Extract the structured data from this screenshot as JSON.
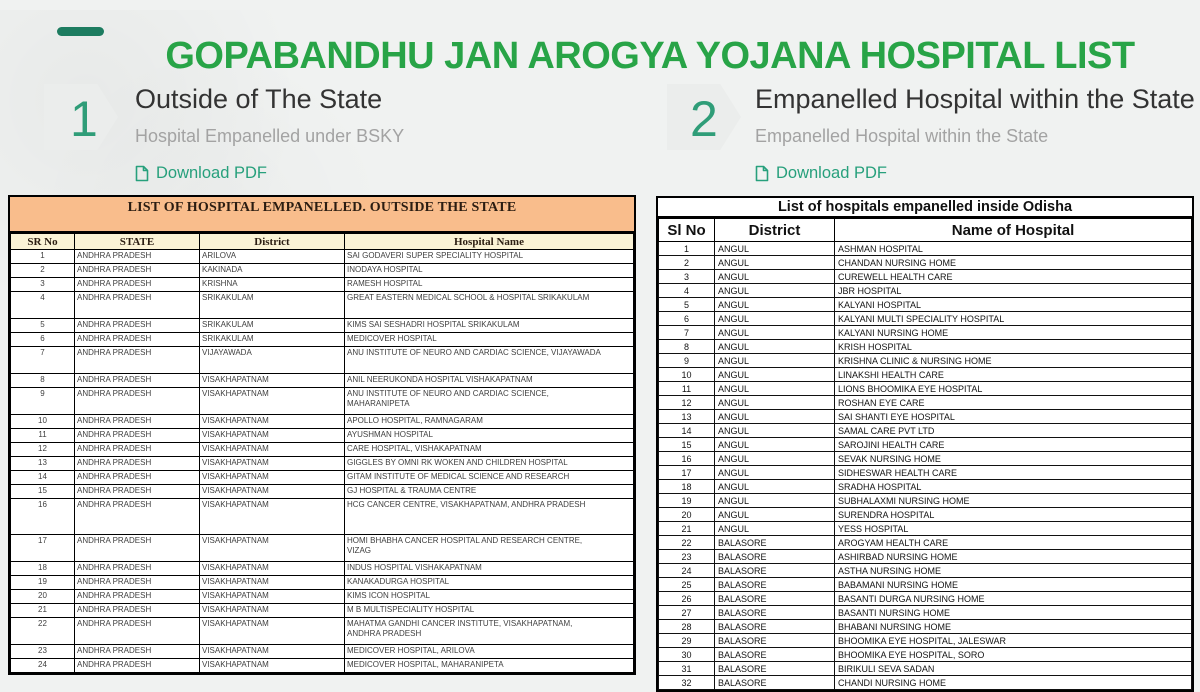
{
  "page": {
    "title": "GOPABANDHU JAN AROGYA YOJANA HOSPITAL LIST"
  },
  "colors": {
    "title_green": "#28a447",
    "accent_teal": "#2f9d78",
    "link_teal": "#27a07c",
    "banner_peach": "#f9bd8c",
    "header_cream": "#fbf3d6"
  },
  "sections": [
    {
      "number": "1",
      "title": "Outside of The State",
      "subtitle": "Hospital Empanelled under BSKY",
      "download_label": "Download PDF"
    },
    {
      "number": "2",
      "title": "Empanelled Hospital within the State",
      "subtitle": "Empanelled Hospital within the State",
      "download_label": "Download PDF"
    }
  ],
  "outside_table": {
    "title": "LIST OF HOSPITAL EMPANELLED. OUTSIDE THE STATE",
    "columns": [
      "SR No",
      "STATE",
      "District",
      "Hospital Name"
    ],
    "rows": [
      [
        "1",
        "ANDHRA PRADESH",
        "ARILOVA",
        "SAI GODAVERI SUPER SPECIALITY HOSPITAL"
      ],
      [
        "2",
        "ANDHRA PRADESH",
        "KAKINADA",
        "INODAYA HOSPITAL"
      ],
      [
        "3",
        "ANDHRA PRADESH",
        "KRISHNA",
        "RAMESH HOSPITAL"
      ],
      [
        "4",
        "ANDHRA PRADESH",
        "SRIKAKULAM",
        "GREAT EASTERN MEDICAL SCHOOL & HOSPITAL SRIKAKULAM"
      ],
      [
        "5",
        "ANDHRA PRADESH",
        "SRIKAKULAM",
        "KIMS SAI SESHADRI HOSPITAL SRIKAKULAM"
      ],
      [
        "6",
        "ANDHRA PRADESH",
        "SRIKAKULAM",
        "MEDICOVER HOSPITAL"
      ],
      [
        "7",
        "ANDHRA PRADESH",
        "VIJAYAWADA",
        "ANU INSTITUTE OF NEURO AND CARDIAC SCIENCE, VIJAYAWADA"
      ],
      [
        "8",
        "ANDHRA PRADESH",
        "VISAKHAPATNAM",
        "ANIL NEERUKONDA HOSPITAL VISHAKAPATNAM"
      ],
      [
        "9",
        "ANDHRA PRADESH",
        "VISAKHAPATNAM",
        "ANU INSTITUTE OF NEURO AND CARDIAC SCIENCE,\nMAHARANIPETA"
      ],
      [
        "10",
        "ANDHRA PRADESH",
        "VISAKHAPATNAM",
        "APOLLO HOSPITAL, RAMNAGARAM"
      ],
      [
        "11",
        "ANDHRA PRADESH",
        "VISAKHAPATNAM",
        "AYUSHMAN HOSPITAL"
      ],
      [
        "12",
        "ANDHRA PRADESH",
        "VISAKHAPATNAM",
        "CARE HOSPITAL, VISHAKAPATNAM"
      ],
      [
        "13",
        "ANDHRA PRADESH",
        "VISAKHAPATNAM",
        "GIGGLES BY OMNI RK WOKEN AND CHILDREN HOSPITAL"
      ],
      [
        "14",
        "ANDHRA PRADESH",
        "VISAKHAPATNAM",
        "GITAM INSTITUTE OF MEDICAL SCIENCE AND RESEARCH"
      ],
      [
        "15",
        "ANDHRA PRADESH",
        "VISAKHAPATNAM",
        "GJ HOSPITAL & TRAUMA CENTRE"
      ],
      [
        "16",
        "ANDHRA PRADESH",
        "VISAKHAPATNAM",
        "HCG CANCER CENTRE, VISAKHAPATNAM, ANDHRA PRADESH"
      ],
      [
        "17",
        "ANDHRA PRADESH",
        "VISAKHAPATNAM",
        "HOMI BHABHA CANCER HOSPITAL AND RESEARCH CENTRE,\nVIZAG"
      ],
      [
        "18",
        "ANDHRA PRADESH",
        "VISAKHAPATNAM",
        "INDUS HOSPITAL VISHAKAPATNAM"
      ],
      [
        "19",
        "ANDHRA PRADESH",
        "VISAKHAPATNAM",
        "KANAKADURGA HOSPITAL"
      ],
      [
        "20",
        "ANDHRA PRADESH",
        "VISAKHAPATNAM",
        "KIMS ICON HOSPITAL"
      ],
      [
        "21",
        "ANDHRA PRADESH",
        "VISAKHAPATNAM",
        "M B MULTISPECIALITY HOSPITAL"
      ],
      [
        "22",
        "ANDHRA PRADESH",
        "VISAKHAPATNAM",
        "MAHATMA GANDHI CANCER INSTITUTE, VISAKHAPATNAM,\nANDHRA PRADESH"
      ],
      [
        "23",
        "ANDHRA PRADESH",
        "VISAKHAPATNAM",
        "MEDICOVER HOSPITAL, ARILOVA"
      ],
      [
        "24",
        "ANDHRA PRADESH",
        "VISAKHAPATNAM",
        "MEDICOVER HOSPITAL, MAHARANIPETA"
      ]
    ]
  },
  "inside_table": {
    "title": "List of hospitals empanelled inside Odisha",
    "columns": [
      "Sl No",
      "District",
      "Name of Hospital"
    ],
    "rows": [
      [
        "1",
        "ANGUL",
        "ASHMAN HOSPITAL"
      ],
      [
        "2",
        "ANGUL",
        "CHANDAN NURSING HOME"
      ],
      [
        "3",
        "ANGUL",
        "CUREWELL HEALTH CARE"
      ],
      [
        "4",
        "ANGUL",
        "JBR HOSPITAL"
      ],
      [
        "5",
        "ANGUL",
        "KALYANI HOSPITAL"
      ],
      [
        "6",
        "ANGUL",
        "KALYANI MULTI SPECIALITY HOSPITAL"
      ],
      [
        "7",
        "ANGUL",
        "KALYANI NURSING HOME"
      ],
      [
        "8",
        "ANGUL",
        "KRISH HOSPITAL"
      ],
      [
        "9",
        "ANGUL",
        "KRISHNA CLINIC & NURSING HOME"
      ],
      [
        "10",
        "ANGUL",
        "LINAKSHI HEALTH CARE"
      ],
      [
        "11",
        "ANGUL",
        "LIONS BHOOMIKA EYE HOSPITAL"
      ],
      [
        "12",
        "ANGUL",
        "ROSHAN EYE CARE"
      ],
      [
        "13",
        "ANGUL",
        "SAI SHANTI EYE HOSPITAL"
      ],
      [
        "14",
        "ANGUL",
        "SAMAL CARE PVT LTD"
      ],
      [
        "15",
        "ANGUL",
        "SAROJINI HEALTH CARE"
      ],
      [
        "16",
        "ANGUL",
        "SEVAK NURSING HOME"
      ],
      [
        "17",
        "ANGUL",
        "SIDHESWAR HEALTH CARE"
      ],
      [
        "18",
        "ANGUL",
        "SRADHA HOSPITAL"
      ],
      [
        "19",
        "ANGUL",
        "SUBHALAXMI NURSING HOME"
      ],
      [
        "20",
        "ANGUL",
        "SURENDRA HOSPITAL"
      ],
      [
        "21",
        "ANGUL",
        "YESS HOSPITAL"
      ],
      [
        "22",
        "BALASORE",
        "AROGYAM HEALTH CARE"
      ],
      [
        "23",
        "BALASORE",
        "ASHIRBAD NURSING HOME"
      ],
      [
        "24",
        "BALASORE",
        "ASTHA NURSING HOME"
      ],
      [
        "25",
        "BALASORE",
        "BABAMANI NURSING HOME"
      ],
      [
        "26",
        "BALASORE",
        "BASANTI DURGA NURSING HOME"
      ],
      [
        "27",
        "BALASORE",
        "BASANTI NURSING HOME"
      ],
      [
        "28",
        "BALASORE",
        "BHABANI NURSING HOME"
      ],
      [
        "29",
        "BALASORE",
        "BHOOMIKA EYE HOSPITAL, JALESWAR"
      ],
      [
        "30",
        "BALASORE",
        "BHOOMIKA EYE HOSPITAL, SORO"
      ],
      [
        "31",
        "BALASORE",
        "BIRIKULI SEVA SADAN"
      ],
      [
        "32",
        "BALASORE",
        "CHANDI NURSING HOME"
      ]
    ]
  }
}
